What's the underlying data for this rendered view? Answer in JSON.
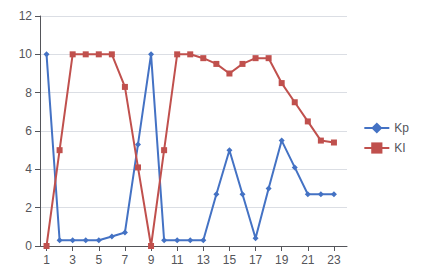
{
  "chart_data": {
    "type": "line",
    "x": [
      1,
      2,
      3,
      4,
      5,
      6,
      7,
      8,
      9,
      10,
      11,
      12,
      13,
      14,
      15,
      16,
      17,
      18,
      19,
      20,
      21,
      22,
      23
    ],
    "series": [
      {
        "name": "Kp",
        "color": "#4472c4",
        "marker": "diamond",
        "values": [
          10,
          0.3,
          0.3,
          0.3,
          0.3,
          0.5,
          0.7,
          5.3,
          10,
          0.3,
          0.3,
          0.3,
          0.3,
          2.7,
          5.0,
          2.7,
          0.4,
          3.0,
          5.5,
          4.1,
          2.7,
          2.7,
          2.7
        ]
      },
      {
        "name": "KI",
        "color": "#c0504d",
        "marker": "square",
        "values": [
          0,
          5,
          10,
          10,
          10,
          10,
          8.3,
          4.1,
          0,
          5.0,
          10,
          10,
          9.8,
          9.5,
          9.0,
          9.5,
          9.8,
          9.8,
          8.5,
          7.5,
          6.5,
          5.5,
          5.4
        ]
      }
    ],
    "xlim": [
      0.5,
      24
    ],
    "xticks": [
      1,
      3,
      5,
      7,
      9,
      11,
      13,
      15,
      17,
      19,
      21,
      23
    ],
    "ylim": [
      0,
      12
    ],
    "yticks": [
      0,
      2,
      4,
      6,
      8,
      10,
      12
    ],
    "grid": true,
    "legend": "right"
  }
}
